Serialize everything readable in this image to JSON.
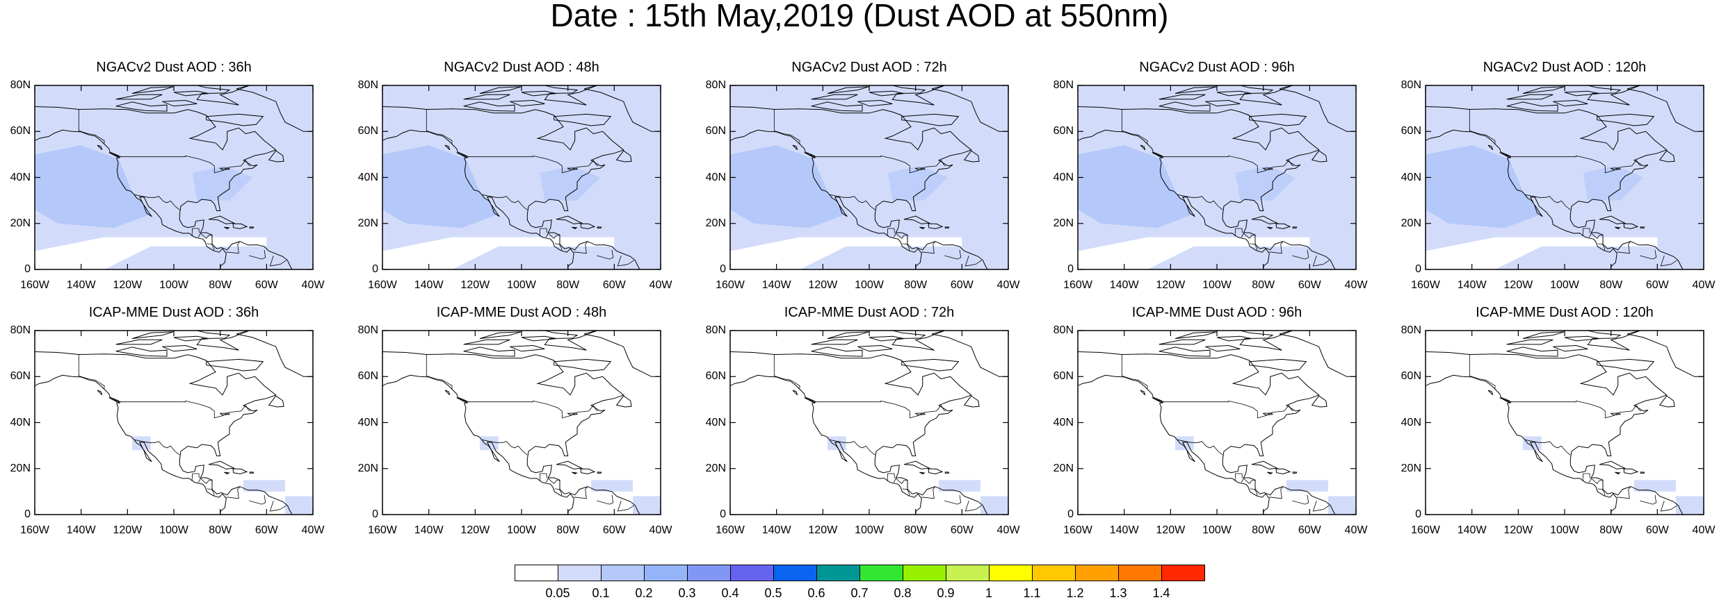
{
  "title": "Date : 15th May,2019 (Dust AOD at 550nm)",
  "map": {
    "projection": "cylindrical equidistant",
    "lon_range": [
      -160,
      -40
    ],
    "lat_range": [
      0,
      80
    ],
    "x_tick_labels": [
      "160W",
      "140W",
      "120W",
      "100W",
      "80W",
      "60W",
      "40W"
    ],
    "y_tick_labels": [
      "0",
      "20N",
      "40N",
      "60N",
      "80N"
    ],
    "boundary_color": "#000000"
  },
  "panels": [
    {
      "title": "NGACv2 Dust AOD : 36h",
      "model": "NGACv2",
      "lead": "36h"
    },
    {
      "title": "NGACv2 Dust AOD : 48h",
      "model": "NGACv2",
      "lead": "48h"
    },
    {
      "title": "NGACv2 Dust AOD : 72h",
      "model": "NGACv2",
      "lead": "72h"
    },
    {
      "title": "NGACv2 Dust AOD : 96h",
      "model": "NGACv2",
      "lead": "96h"
    },
    {
      "title": "NGACv2 Dust AOD : 120h",
      "model": "NGACv2",
      "lead": "120h"
    },
    {
      "title": "ICAP-MME Dust AOD : 36h",
      "model": "ICAP-MME",
      "lead": "36h"
    },
    {
      "title": "ICAP-MME Dust AOD : 48h",
      "model": "ICAP-MME",
      "lead": "48h"
    },
    {
      "title": "ICAP-MME Dust AOD : 72h",
      "model": "ICAP-MME",
      "lead": "72h"
    },
    {
      "title": "ICAP-MME Dust AOD : 96h",
      "model": "ICAP-MME",
      "lead": "96h"
    },
    {
      "title": "ICAP-MME Dust AOD : 120h",
      "model": "ICAP-MME",
      "lead": "120h"
    }
  ],
  "colorbar": {
    "labels": [
      "0.05",
      "0.1",
      "0.2",
      "0.3",
      "0.4",
      "0.5",
      "0.6",
      "0.7",
      "0.8",
      "0.9",
      "1",
      "1.1",
      "1.2",
      "1.3",
      "1.4"
    ],
    "colors": [
      "#ffffff",
      "#d2dcfa",
      "#b4c8fa",
      "#96b4fa",
      "#8296f5",
      "#6464f0",
      "#0a64f0",
      "#009696",
      "#32e632",
      "#96f000",
      "#c8f050",
      "#ffff00",
      "#ffc800",
      "#ffa000",
      "#ff7800",
      "#ff2800"
    ]
  }
}
